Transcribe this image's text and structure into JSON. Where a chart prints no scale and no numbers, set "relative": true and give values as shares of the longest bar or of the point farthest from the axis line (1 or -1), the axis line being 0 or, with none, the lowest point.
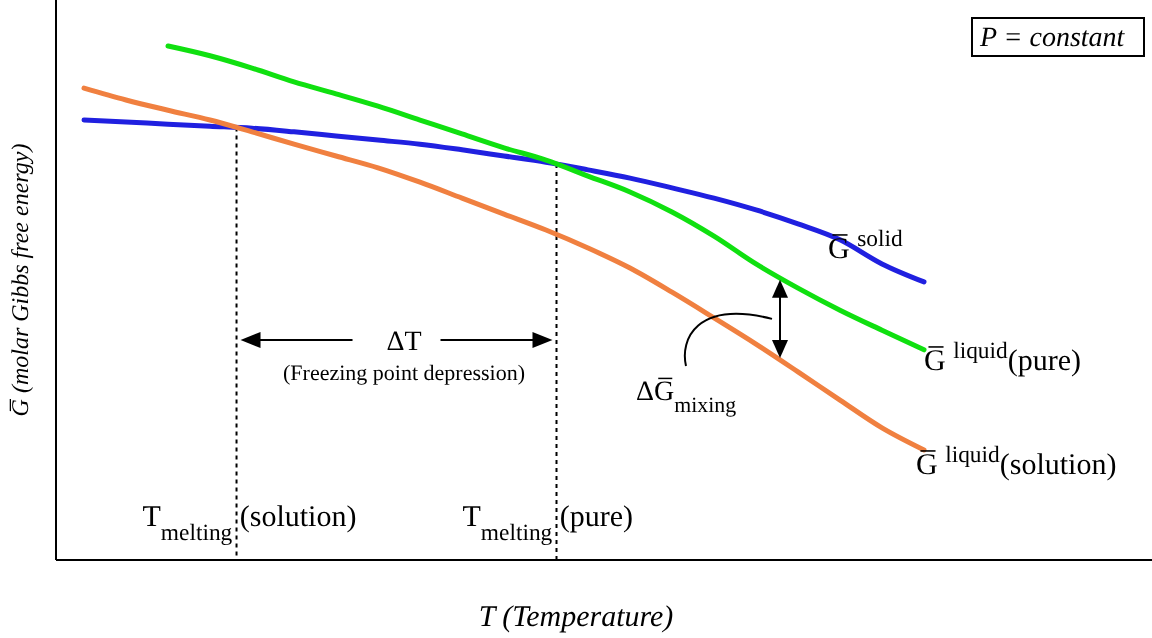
{
  "chart_data": {
    "type": "line",
    "relative": true,
    "xlabel": "T (Temperature)",
    "ylabel": "G̅ (molar Gibbs free energy)",
    "marker": "none",
    "line_style": "solid",
    "categories": [
      null,
      null,
      null,
      null,
      null,
      null,
      null,
      null,
      null,
      null,
      null,
      null,
      null,
      null,
      null,
      null,
      null,
      null,
      null,
      null,
      null
    ],
    "series": [
      {
        "name": "G̅ $^{solid}$",
        "color": "#2020e0",
        "values": [
          0.856,
          0.852,
          0.848,
          0.844,
          0.84,
          0.833,
          0.825,
          0.817,
          0.809,
          0.798,
          0.786,
          0.774,
          0.759,
          0.743,
          0.724,
          0.704,
          0.681,
          0.654,
          0.623,
          0.576,
          0.541
        ]
      },
      {
        "name": "G̅ $^{liquid}$(pure)",
        "color": "#10e010",
        "values": [
          null,
          null,
          1,
          0.981,
          0.957,
          0.93,
          0.907,
          0.883,
          0.856,
          0.829,
          0.802,
          0.778,
          0.747,
          0.716,
          0.677,
          0.63,
          0.576,
          0.529,
          0.486,
          0.447,
          0.409
        ]
      },
      {
        "name": "G̅ $^{liquid}$(solution)",
        "color": "#f08040",
        "values": [
          0.918,
          0.895,
          0.875,
          0.856,
          0.833,
          0.809,
          0.786,
          0.763,
          0.735,
          0.704,
          0.673,
          0.642,
          0.607,
          0.568,
          0.521,
          0.471,
          0.42,
          0.366,
          0.311,
          0.257,
          0.214
        ]
      }
    ],
    "annotations": [
      "P = constant",
      "ΔT",
      "(Freezing point depression)",
      "ΔG̅$_{mixing}$",
      "T$_{melting}$ (solution)",
      "T$_{melting}$ (pure)"
    ]
  }
}
